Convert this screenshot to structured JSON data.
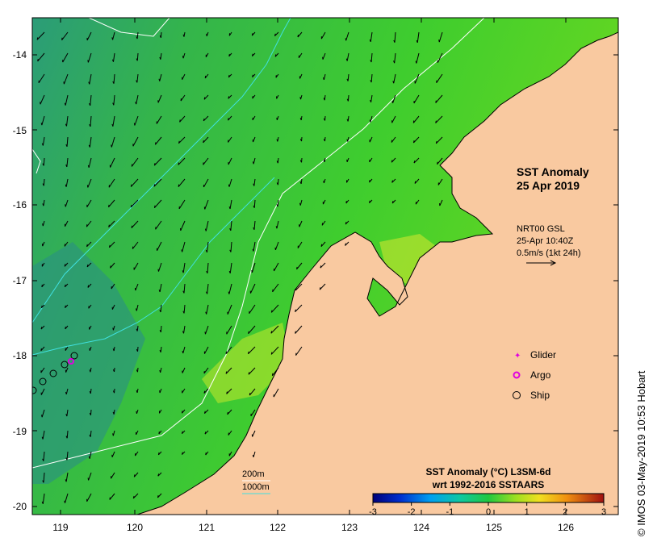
{
  "map": {
    "title_line1": "SST Anomaly",
    "title_line2": "25 Apr 2019",
    "current_source": "NRT00 GSL",
    "current_time": "25-Apr 10:40Z",
    "current_scale": "0.5m/s (1kt 24h)",
    "credit": "© IMOS 03-May-2019 10:53 Hobart",
    "colors": {
      "land": "#f9c9a0",
      "ocean_mid": "#2fc23a",
      "ocean_west": "#2a9a7a"
    }
  },
  "axes": {
    "lat_ticks": [
      "-14",
      "-15",
      "-16",
      "-17",
      "-18",
      "-19",
      "-20"
    ],
    "lon_ticks": [
      "119",
      "120",
      "121",
      "122",
      "123",
      "124",
      "125",
      "126"
    ]
  },
  "legend": {
    "glider": "Glider",
    "argo": "Argo",
    "ship": "Ship"
  },
  "bathymetry": {
    "contour_200": "200m",
    "contour_1000": "1000m"
  },
  "colorbar": {
    "title_line1": "SST Anomaly (°C) L3SM-6d",
    "title_line2": "wrt 1992-2016 SSTAARS",
    "ticks": [
      "-3",
      "-2",
      "-1",
      "0",
      "1",
      "2",
      "3"
    ],
    "range": [
      -3,
      3
    ]
  }
}
